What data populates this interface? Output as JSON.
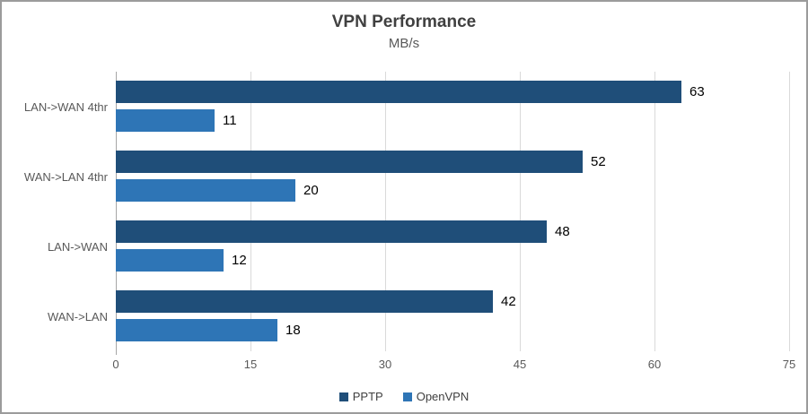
{
  "chart_data": {
    "type": "bar",
    "orientation": "horizontal",
    "title": "VPN Performance",
    "subtitle": "MB/s",
    "categories": [
      "LAN->WAN 4thr",
      "WAN->LAN 4thr",
      "LAN->WAN",
      "WAN->LAN"
    ],
    "series": [
      {
        "name": "PPTP",
        "color": "#1F4E79",
        "values": [
          63,
          52,
          48,
          42
        ]
      },
      {
        "name": "OpenVPN",
        "color": "#2E75B6",
        "values": [
          11,
          20,
          12,
          18
        ]
      }
    ],
    "xlim": [
      0,
      75
    ],
    "x_ticks": [
      0,
      15,
      30,
      45,
      60,
      75
    ],
    "grid": true,
    "data_labels": true,
    "legend_position": "bottom"
  },
  "colors": {
    "gridline": "#d9d9d9",
    "axis_line": "#a6a6a6",
    "chart_border": "#9b9b9b",
    "title_text": "#404040",
    "axis_text": "#595959",
    "data_label_text": "#000000",
    "background": "#ffffff"
  }
}
